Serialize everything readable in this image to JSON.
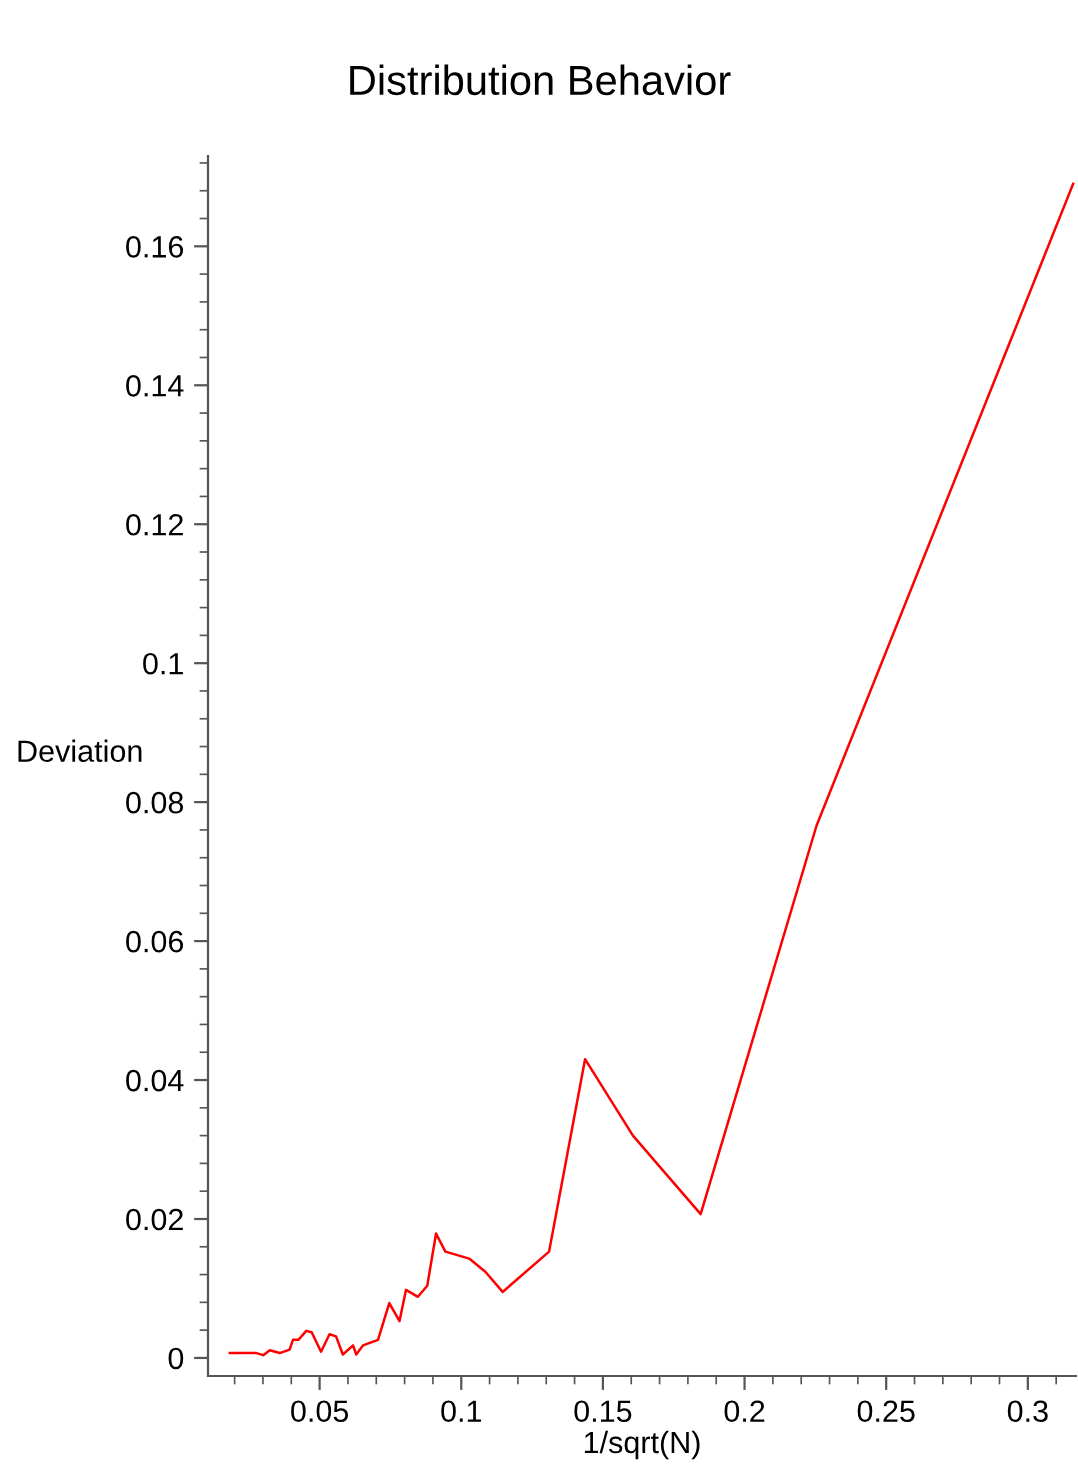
{
  "chart_data": {
    "type": "line",
    "title": "Distribution Behavior",
    "xlabel": "1/sqrt(N)",
    "ylabel": "Deviation",
    "x": [
      0.0183,
      0.0277,
      0.0301,
      0.0324,
      0.0359,
      0.0394,
      0.0406,
      0.0425,
      0.0453,
      0.0472,
      0.0505,
      0.0535,
      0.0558,
      0.0582,
      0.0618,
      0.0629,
      0.0653,
      0.0706,
      0.0746,
      0.0782,
      0.0805,
      0.0847,
      0.088,
      0.0911,
      0.0944,
      0.1028,
      0.1085,
      0.1146,
      0.131,
      0.1437,
      0.1606,
      0.1845,
      0.2254,
      0.316
    ],
    "series": [
      {
        "color": "#ff0000",
        "values": [
          0.0007,
          0.0007,
          0.0004,
          0.0011,
          0.0007,
          0.0012,
          0.0026,
          0.0026,
          0.0039,
          0.0037,
          0.0009,
          0.0034,
          0.0031,
          0.0005,
          0.0018,
          0.0005,
          0.0018,
          0.0026,
          0.0079,
          0.0053,
          0.0098,
          0.0088,
          0.0104,
          0.0179,
          0.0153,
          0.0143,
          0.0124,
          0.0095,
          0.0153,
          0.043,
          0.032,
          0.0207,
          0.0766,
          0.169
        ]
      }
    ],
    "xlim": [
      0.0106,
      0.317
    ],
    "ylim": [
      -0.0026,
      0.173
    ],
    "xticks": [
      0.05,
      0.1,
      0.15,
      0.2,
      0.25,
      0.3
    ],
    "yticks": [
      0,
      0.02,
      0.04,
      0.06,
      0.08,
      0.1,
      0.12,
      0.14,
      0.16
    ],
    "grid": false,
    "legend": false,
    "marker": "none",
    "line_style": "solid"
  }
}
